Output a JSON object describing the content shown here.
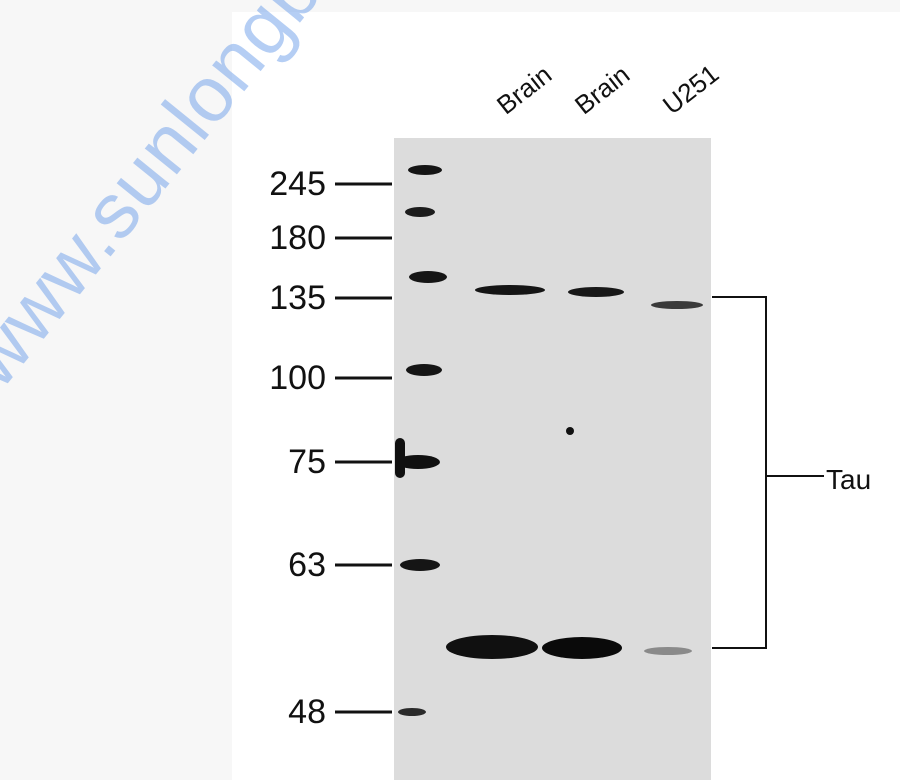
{
  "lane_labels": [
    "Brain",
    "Brain",
    "U251"
  ],
  "mw_markers": [
    "245",
    "180",
    "135",
    "100",
    "75",
    "63",
    "48"
  ],
  "target_label": "Tau",
  "watermark": "www.sunlongbiotech.com",
  "colors": {
    "membrane": "#dcdcdc",
    "band": "#101010",
    "text": "#111111",
    "watermark": "#78a5eb"
  }
}
